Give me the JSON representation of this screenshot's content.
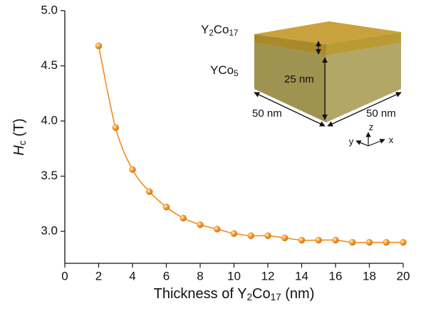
{
  "chart_data": {
    "type": "line",
    "xlabel": [
      "Thickness of Y",
      "2",
      "Co",
      "17",
      " (nm)"
    ],
    "ylabel": [
      "H",
      "c",
      " (T)"
    ],
    "x": [
      2,
      3,
      4,
      5,
      6,
      7,
      8,
      9,
      10,
      11,
      12,
      13,
      14,
      15,
      16,
      17,
      18,
      19,
      20
    ],
    "series": [
      {
        "color": "#f28a1c",
        "values": [
          4.68,
          3.94,
          3.56,
          3.36,
          3.22,
          3.12,
          3.06,
          3.02,
          2.98,
          2.96,
          2.96,
          2.94,
          2.92,
          2.92,
          2.92,
          2.9,
          2.9,
          2.9,
          2.9
        ]
      }
    ],
    "xlim": [
      0,
      20
    ],
    "xticks": [
      0,
      2,
      4,
      6,
      8,
      10,
      12,
      14,
      16,
      18,
      20
    ],
    "ylim": [
      2.71,
      5.0
    ],
    "yticks": [
      {
        "value": 3,
        "label": "3.0"
      },
      3.5,
      {
        "value": 4,
        "label": "4.0"
      },
      4.5,
      {
        "value": 5,
        "label": "5.0"
      }
    ],
    "grid": false,
    "annotations": [
      [
        "Y",
        "2",
        "Co",
        "17"
      ],
      [
        "YCo",
        "5"
      ],
      [
        "25 nm"
      ],
      [
        "50 nm"
      ],
      [
        "50 nm"
      ],
      [
        "z"
      ],
      [
        "y"
      ],
      [
        "x"
      ]
    ]
  }
}
